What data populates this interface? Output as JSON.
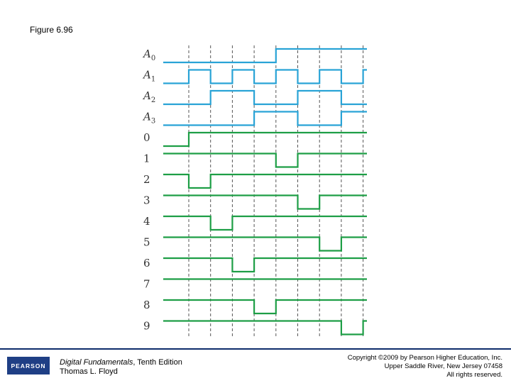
{
  "figure_title": "Figure 6.96",
  "signals": [
    {
      "base": "A",
      "sub": "0",
      "color": "#29a3d6",
      "levels": [
        0,
        0,
        0,
        0,
        0,
        1,
        1,
        1,
        1,
        1
      ]
    },
    {
      "base": "A",
      "sub": "1",
      "color": "#29a3d6",
      "levels": [
        0,
        1,
        0,
        1,
        0,
        1,
        0,
        1,
        0,
        1
      ]
    },
    {
      "base": "A",
      "sub": "2",
      "color": "#29a3d6",
      "levels": [
        0,
        0,
        1,
        1,
        0,
        0,
        1,
        1,
        0,
        0
      ]
    },
    {
      "base": "A",
      "sub": "3",
      "color": "#29a3d6",
      "levels": [
        0,
        0,
        0,
        0,
        1,
        1,
        0,
        0,
        1,
        1
      ]
    },
    {
      "base": "0",
      "sub": "",
      "color": "#1e9e46",
      "levels": [
        0,
        1,
        1,
        1,
        1,
        1,
        1,
        1,
        1,
        1
      ]
    },
    {
      "base": "1",
      "sub": "",
      "color": "#1e9e46",
      "levels": [
        1,
        1,
        1,
        1,
        1,
        0,
        1,
        1,
        1,
        1
      ]
    },
    {
      "base": "2",
      "sub": "",
      "color": "#1e9e46",
      "levels": [
        1,
        0,
        1,
        1,
        1,
        1,
        1,
        1,
        1,
        1
      ]
    },
    {
      "base": "3",
      "sub": "",
      "color": "#1e9e46",
      "levels": [
        1,
        1,
        1,
        1,
        1,
        1,
        0,
        1,
        1,
        1
      ]
    },
    {
      "base": "4",
      "sub": "",
      "color": "#1e9e46",
      "levels": [
        1,
        1,
        0,
        1,
        1,
        1,
        1,
        1,
        1,
        1
      ]
    },
    {
      "base": "5",
      "sub": "",
      "color": "#1e9e46",
      "levels": [
        1,
        1,
        1,
        1,
        1,
        1,
        1,
        0,
        1,
        1
      ]
    },
    {
      "base": "6",
      "sub": "",
      "color": "#1e9e46",
      "levels": [
        1,
        1,
        1,
        0,
        1,
        1,
        1,
        1,
        1,
        1
      ]
    },
    {
      "base": "7",
      "sub": "",
      "color": "#1e9e46",
      "levels": [
        1,
        1,
        1,
        1,
        1,
        1,
        1,
        1,
        1,
        1
      ]
    },
    {
      "base": "8",
      "sub": "",
      "color": "#1e9e46",
      "levels": [
        1,
        1,
        1,
        1,
        0,
        1,
        1,
        1,
        1,
        1
      ]
    },
    {
      "base": "9",
      "sub": "",
      "color": "#1e9e46",
      "levels": [
        1,
        1,
        1,
        1,
        1,
        1,
        1,
        1,
        0,
        1
      ]
    }
  ],
  "footer": {
    "logo_text": "PEARSON",
    "book_title": "Digital Fundamentals",
    "book_edition": ", Tenth Edition",
    "author": "Thomas L. Floyd",
    "copyright_line1": "Copyright ©2009 by Pearson Higher Education, Inc.",
    "copyright_line2": "Upper Saddle River, New Jersey 07458",
    "copyright_line3": "All rights reserved."
  },
  "colors": {
    "address_wave": "#29a3d6",
    "output_wave": "#1e9e46",
    "gridline": "#555555",
    "footer_bar": "#0f2c6b"
  }
}
